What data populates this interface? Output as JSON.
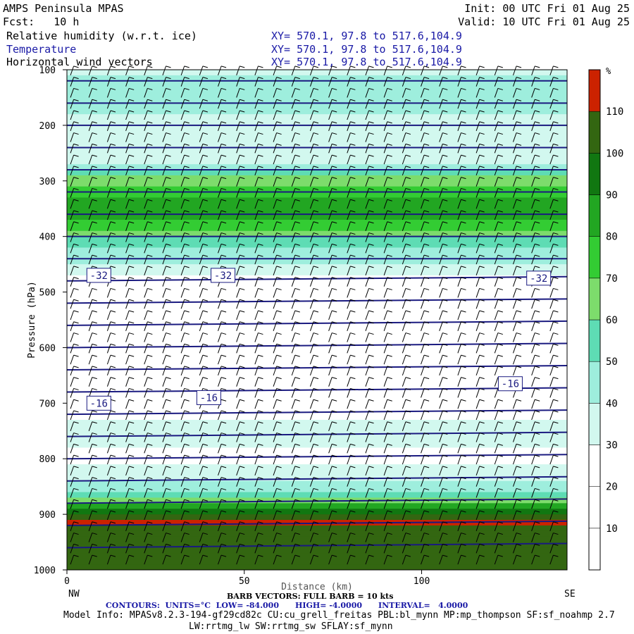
{
  "header": {
    "model": "AMPS Peninsula MPAS",
    "fcst": "Fcst:   10 h",
    "init": "Init: 00 UTC Fri 01 Aug 25",
    "valid": "Valid: 10 UTC Fri 01 Aug 25",
    "fields": [
      {
        "name": "Relative humidity (w.r.t. ice)",
        "xy": "XY= 570.1, 97.8 to 517.6,104.9",
        "color": "#000000"
      },
      {
        "name": "Temperature",
        "xy": "XY= 570.1, 97.8 to 517.6,104.9",
        "color": "#1a1aa6"
      },
      {
        "name": "Horizontal wind vectors",
        "xy": "XY= 570.1, 97.8 to 517.6,104.9",
        "color": "#000000"
      }
    ]
  },
  "chart_data": {
    "type": "heatmap",
    "ylabel": "Pressure (hPa)",
    "xlabel": "Distance (km)",
    "y_axis": {
      "ticks": [
        100,
        200,
        300,
        400,
        500,
        600,
        700,
        800,
        900,
        1000
      ],
      "range": [
        100,
        1000
      ],
      "inverted": true
    },
    "x_axis": {
      "ticks": [
        0,
        50,
        100
      ],
      "range": [
        0,
        141
      ]
    },
    "x_end_labels": {
      "left": "NW",
      "right": "SE"
    },
    "colorbar": {
      "unit": "%",
      "bounds": [
        0,
        10,
        20,
        30,
        40,
        50,
        60,
        70,
        80,
        90,
        100,
        110,
        120
      ],
      "tick_labels": [
        10,
        20,
        30,
        40,
        50,
        60,
        70,
        80,
        90,
        100,
        110
      ],
      "colors": [
        "#ffffff",
        "#ffffff",
        "#ffffff",
        "#d2f8ef",
        "#9eeedd",
        "#5edcb4",
        "#7ddc6c",
        "#33cc33",
        "#22a622",
        "#117711",
        "#336611",
        "#cc2200"
      ]
    },
    "rh_profile": [
      {
        "p": 100,
        "rh": 38
      },
      {
        "p": 150,
        "rh": 45
      },
      {
        "p": 200,
        "rh": 35
      },
      {
        "p": 240,
        "rh": 30
      },
      {
        "p": 270,
        "rh": 40
      },
      {
        "p": 290,
        "rh": 60
      },
      {
        "p": 320,
        "rh": 75
      },
      {
        "p": 350,
        "rh": 88
      },
      {
        "p": 380,
        "rh": 75
      },
      {
        "p": 410,
        "rh": 55
      },
      {
        "p": 440,
        "rh": 42
      },
      {
        "p": 470,
        "rh": 30
      },
      {
        "p": 500,
        "rh": 22
      },
      {
        "p": 600,
        "rh": 15
      },
      {
        "p": 700,
        "rh": 22
      },
      {
        "p": 760,
        "rh": 38
      },
      {
        "p": 800,
        "rh": 25
      },
      {
        "p": 860,
        "rh": 50
      },
      {
        "p": 880,
        "rh": 75
      },
      {
        "p": 900,
        "rh": 95
      },
      {
        "p": 915,
        "rh": 112
      },
      {
        "p": 940,
        "rh": 105
      },
      {
        "p": 1000,
        "rh": 100
      }
    ],
    "isotherm_labels": [
      {
        "text": "-32",
        "x_km": 9,
        "p": 470
      },
      {
        "text": "-32",
        "x_km": 44,
        "p": 470
      },
      {
        "text": "-32",
        "x_km": 133,
        "p": 475
      },
      {
        "text": "-16",
        "x_km": 9,
        "p": 700
      },
      {
        "text": "-16",
        "x_km": 40,
        "p": 690
      },
      {
        "text": "-16",
        "x_km": 125,
        "p": 665
      }
    ],
    "barb_note": "BARB VECTORS: FULL BARB = 10 kts"
  },
  "footer": {
    "contours": "CONTOURS:  UNITS=°C  LOW= -84.000      HIGH= -4.0000      INTERVAL=   4.0000",
    "model_info": "Model Info: MPASv8.2.3-194-gf29cd82c CU:cu_grell_freitas PBL:bl_mynn MP:mp_thompson SF:sf_noahmp 2.7",
    "model_info_2": "LW:rrtmg_lw SW:rrtmg_sw SFLAY:sf_mynn"
  },
  "colors": {
    "isotherm": "#1a1a80",
    "barb": "#000000"
  }
}
